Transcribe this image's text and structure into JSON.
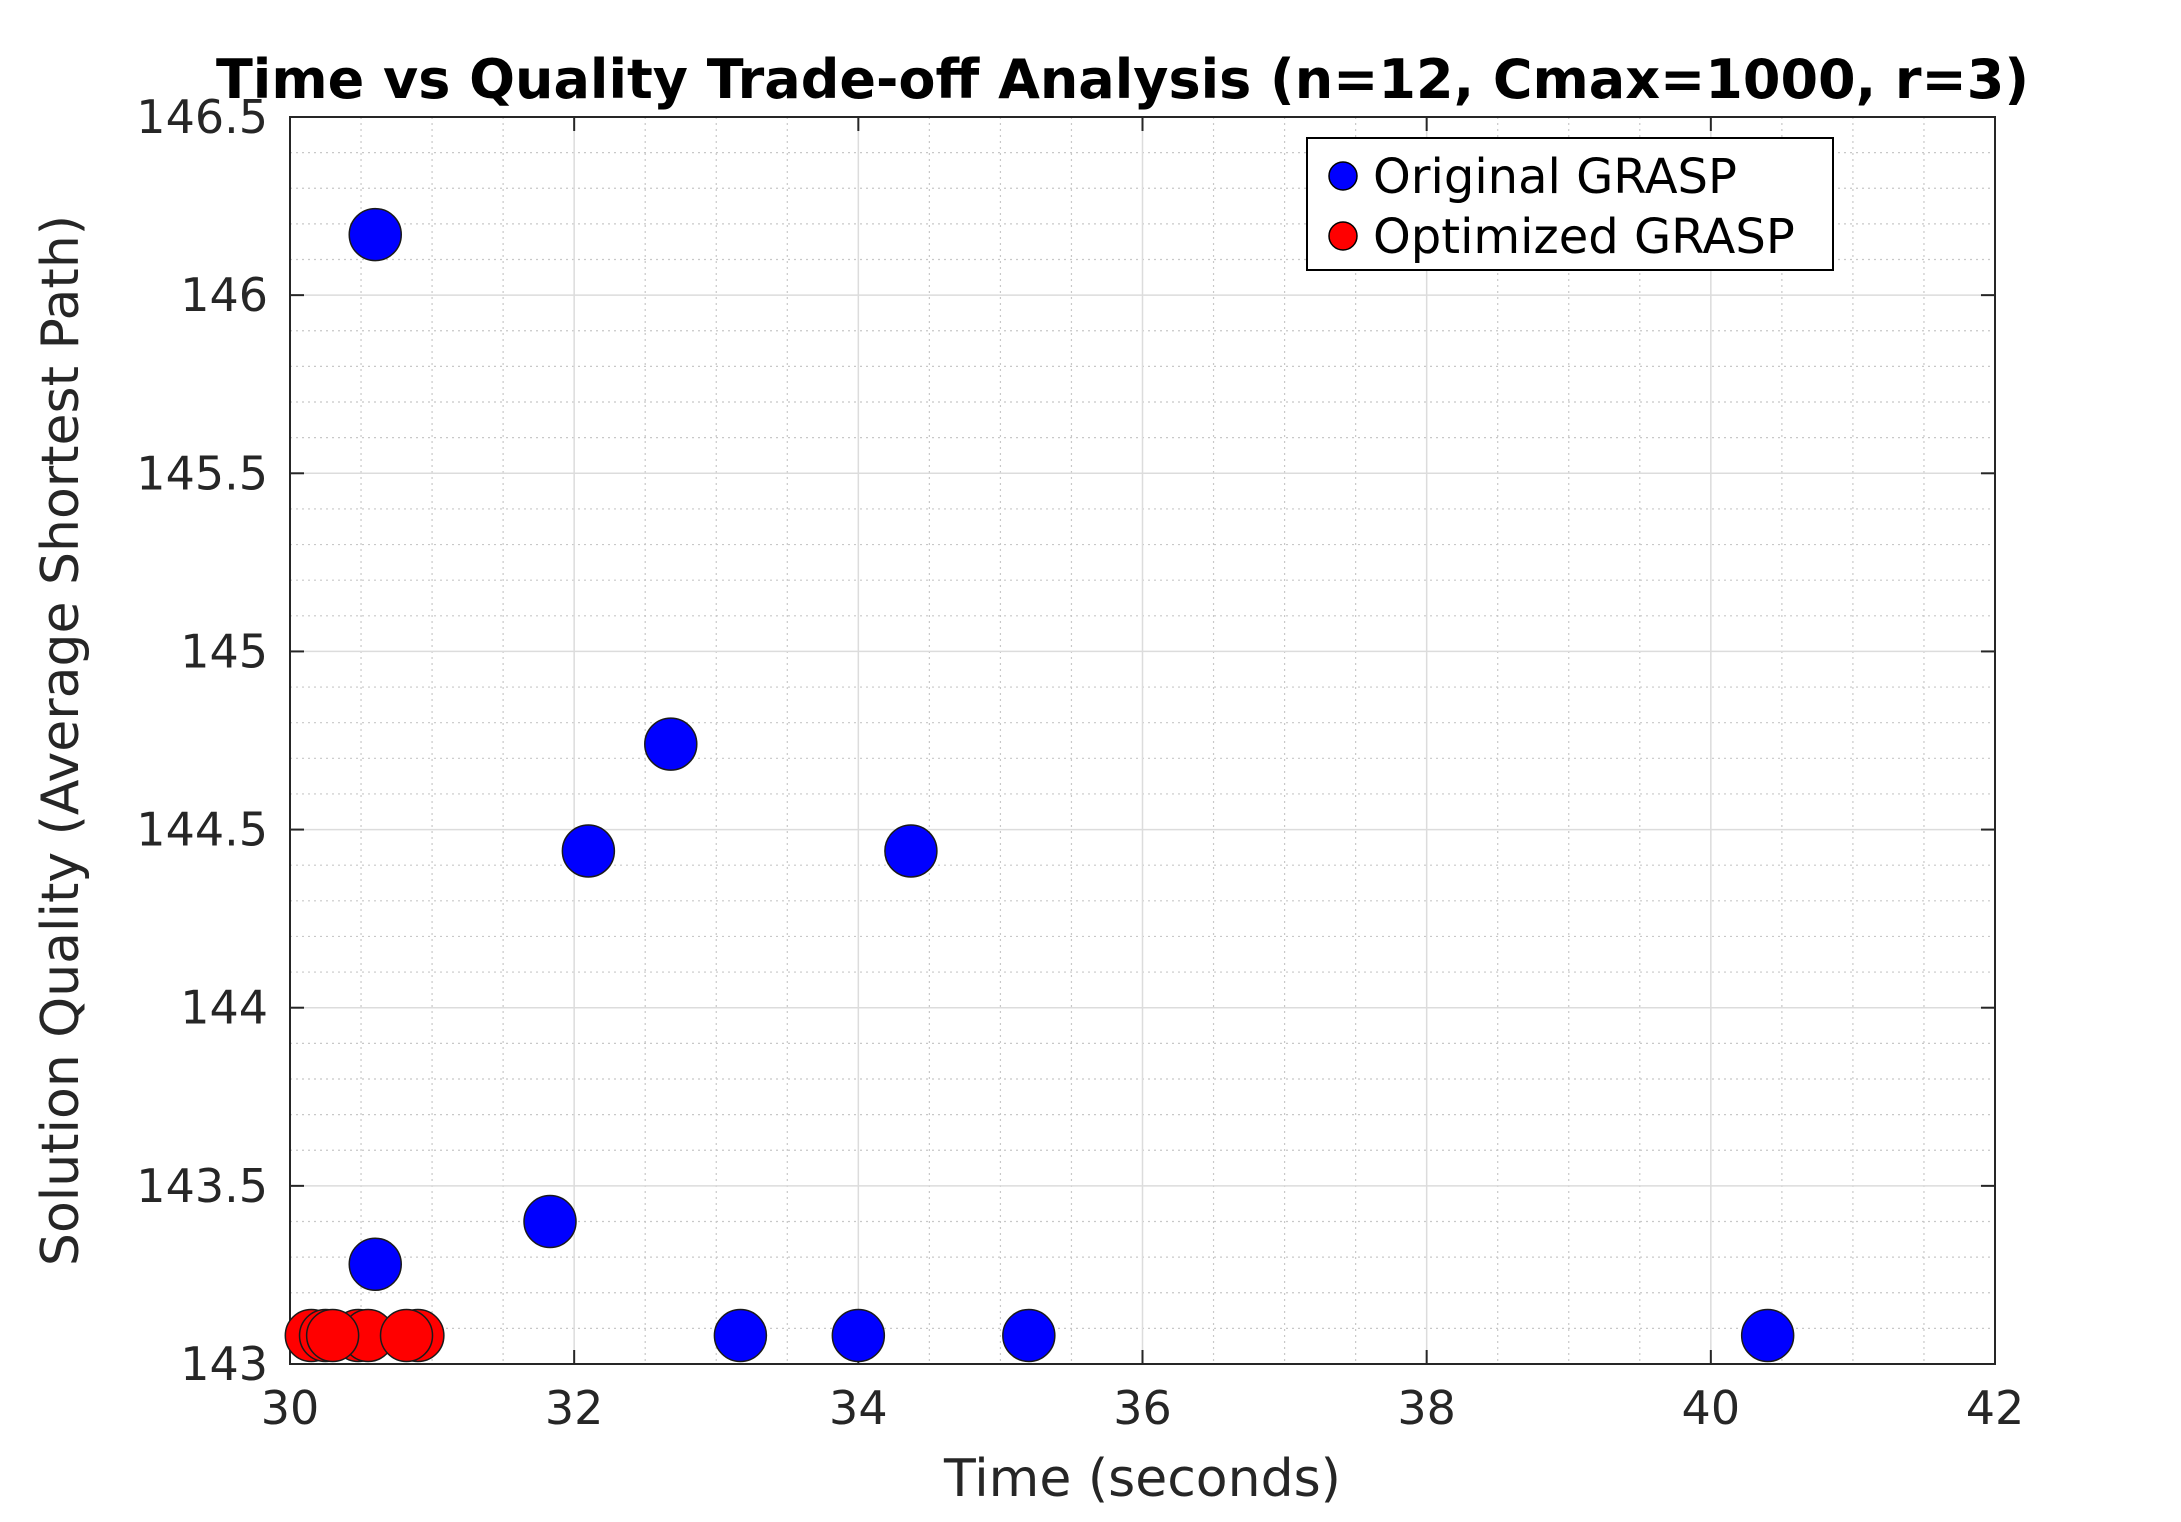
{
  "chart_data": {
    "type": "scatter",
    "title": "Time vs Quality Trade-off Analysis (n=12, Cmax=1000, r=3)",
    "xlabel": "Time (seconds)",
    "ylabel": "Solution Quality (Average Shortest Path)",
    "xlim": [
      30,
      42
    ],
    "ylim": [
      143,
      146.5
    ],
    "xticks": [
      30,
      32,
      34,
      36,
      38,
      40,
      42
    ],
    "xtick_labels": [
      "30",
      "32",
      "34",
      "36",
      "38",
      "40",
      "42"
    ],
    "yticks": [
      143,
      143.5,
      144,
      144.5,
      145,
      145.5,
      146,
      146.5
    ],
    "ytick_labels": [
      "143",
      "143.5",
      "144",
      "144.5",
      "145",
      "145.5",
      "146",
      "146.5"
    ],
    "grid": true,
    "minor_grid": true,
    "legend_position": "top-right",
    "series": [
      {
        "name": "Original GRASP",
        "color": "#0000ff",
        "x": [
          30.6,
          30.6,
          31.83,
          32.1,
          32.68,
          33.17,
          34.0,
          34.37,
          35.2,
          40.4
        ],
        "y": [
          146.17,
          143.28,
          143.4,
          144.44,
          144.74,
          143.08,
          143.08,
          144.44,
          143.08,
          143.08
        ]
      },
      {
        "name": "Optimized GRASP",
        "color": "#ff0000",
        "x": [
          30.15,
          30.25,
          30.48,
          30.55,
          30.9,
          30.82,
          30.3
        ],
        "y": [
          143.08,
          143.08,
          143.08,
          143.08,
          143.08,
          143.08,
          143.08
        ]
      }
    ]
  }
}
